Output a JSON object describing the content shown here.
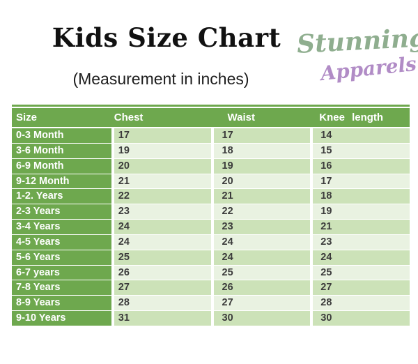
{
  "page": {
    "title": "Kids Size Chart",
    "subtitle": "(Measurement in inches)"
  },
  "brand": {
    "name_line1": "Stunning",
    "name_line2": "Apparels"
  },
  "colors": {
    "title_text": "#111111",
    "header_green": "#6ea84e",
    "row_green_light": "#cce2b8",
    "row_green_pale": "#e9f2e1",
    "value_text": "#3b3b3b",
    "brand_green": "#8fae8f",
    "brand_purple": "#b18cc6"
  },
  "chart_data": {
    "type": "table",
    "title": "Kids Size Chart",
    "subtitle": "(Measurement in inches)",
    "unit": "inches",
    "columns": [
      "Size",
      "Chest",
      "Waist",
      "Knee length"
    ],
    "rows": [
      {
        "label": "0-3 Month",
        "chest": 17,
        "waist": 17,
        "knee": 14
      },
      {
        "label": "3-6 Month",
        "chest": 19,
        "waist": 18,
        "knee": 15
      },
      {
        "label": "6-9 Month",
        "chest": 20,
        "waist": 19,
        "knee": 16
      },
      {
        "label": "9-12 Month",
        "chest": 21,
        "waist": 20,
        "knee": 17
      },
      {
        "label": "1-2. Years",
        "chest": 22,
        "waist": 21,
        "knee": 18
      },
      {
        "label": "2-3 Years",
        "chest": 23,
        "waist": 22,
        "knee": 19
      },
      {
        "label": "3-4 Years",
        "chest": 24,
        "waist": 23,
        "knee": 21
      },
      {
        "label": "4-5 Years",
        "chest": 24,
        "waist": 24,
        "knee": 23
      },
      {
        "label": "5-6 Years",
        "chest": 25,
        "waist": 24,
        "knee": 24
      },
      {
        "label": "6-7 years",
        "chest": 26,
        "waist": 25,
        "knee": 25
      },
      {
        "label": "7-8 Years",
        "chest": 27,
        "waist": 26,
        "knee": 27
      },
      {
        "label": "8-9 Years",
        "chest": 28,
        "waist": 27,
        "knee": 28
      },
      {
        "label": "9-10 Years",
        "chest": 31,
        "waist": 30,
        "knee": 30
      }
    ]
  }
}
